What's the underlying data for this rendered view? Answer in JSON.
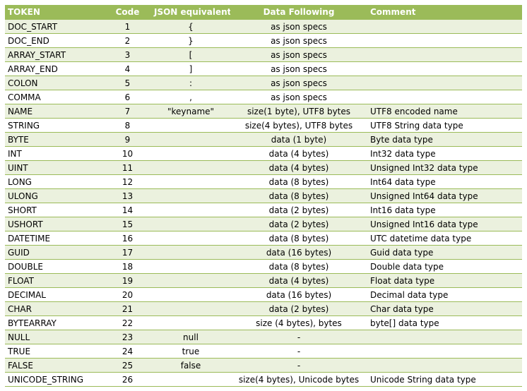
{
  "table": {
    "headers": [
      "TOKEN",
      "Code",
      "JSON equivalent",
      "Data Following",
      "Comment"
    ],
    "rows": [
      [
        "DOC_START",
        "1",
        "{",
        "as json specs",
        ""
      ],
      [
        "DOC_END",
        "2",
        "}",
        "as json specs",
        ""
      ],
      [
        "ARRAY_START",
        "3",
        "[",
        "as json specs",
        ""
      ],
      [
        "ARRAY_END",
        "4",
        "]",
        "as json specs",
        ""
      ],
      [
        "COLON",
        "5",
        ":",
        "as json specs",
        ""
      ],
      [
        "COMMA",
        "6",
        ",",
        "as json specs",
        ""
      ],
      [
        "NAME",
        "7",
        "\"keyname\"",
        "size(1 byte), UTF8 bytes",
        "UTF8 encoded name"
      ],
      [
        "STRING",
        "8",
        "",
        "size(4 bytes), UTF8 bytes",
        "UTF8 String data type"
      ],
      [
        "BYTE",
        "9",
        "",
        "data (1 byte)",
        "Byte data type"
      ],
      [
        "INT",
        "10",
        "",
        "data (4 bytes)",
        "Int32 data type"
      ],
      [
        "UINT",
        "11",
        "",
        "data (4 bytes)",
        "Unsigned Int32 data type"
      ],
      [
        "LONG",
        "12",
        "",
        "data (8 bytes)",
        "Int64 data type"
      ],
      [
        "ULONG",
        "13",
        "",
        "data (8 bytes)",
        "Unsigned Int64 data type"
      ],
      [
        "SHORT",
        "14",
        "",
        "data (2 bytes)",
        "Int16 data type"
      ],
      [
        "USHORT",
        "15",
        "",
        "data (2 bytes)",
        "Unsigned Int16 data type"
      ],
      [
        "DATETIME",
        "16",
        "",
        "data (8 bytes)",
        "UTC datetime data type"
      ],
      [
        "GUID",
        "17",
        "",
        "data (16 bytes)",
        "Guid data type"
      ],
      [
        "DOUBLE",
        "18",
        "",
        "data (8 bytes)",
        "Double data type"
      ],
      [
        "FLOAT",
        "19",
        "",
        "data (4 bytes)",
        "Float data type"
      ],
      [
        "DECIMAL",
        "20",
        "",
        "data (16 bytes)",
        "Decimal data type"
      ],
      [
        "CHAR",
        "21",
        "",
        "data (2 bytes)",
        "Char data type"
      ],
      [
        "BYTEARRAY",
        "22",
        "",
        "size (4 bytes), bytes",
        "byte[] data type"
      ],
      [
        "NULL",
        "23",
        "null",
        "-",
        ""
      ],
      [
        "TRUE",
        "24",
        "true",
        "-",
        ""
      ],
      [
        "FALSE",
        "25",
        "false",
        "-",
        ""
      ],
      [
        "UNICODE_STRING",
        "26",
        "",
        "size(4 bytes), Unicode bytes",
        "Unicode String data type"
      ]
    ]
  },
  "colors": {
    "header_bg": "#9bbb59",
    "header_text": "#ffffff",
    "band_bg": "#ebf1de",
    "row_border": "#9bbb59"
  }
}
